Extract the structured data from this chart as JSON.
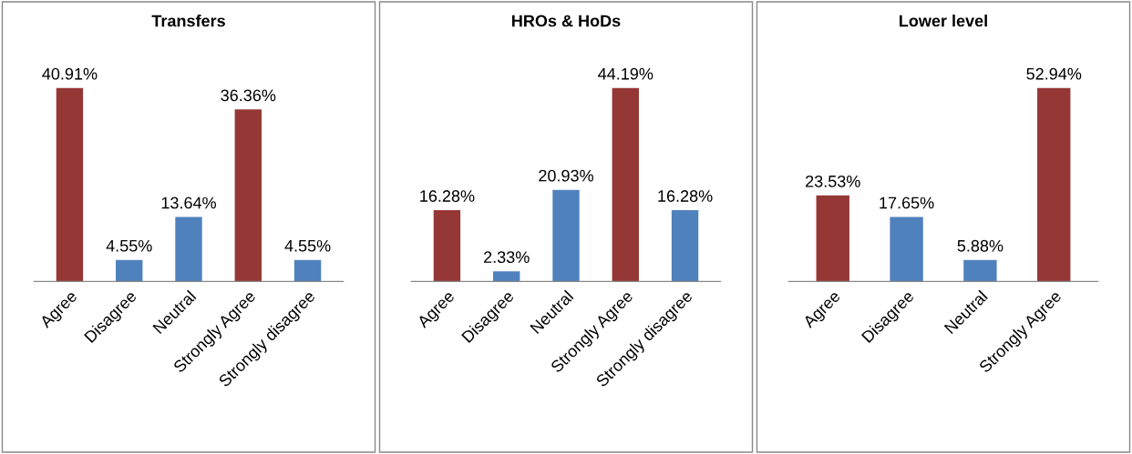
{
  "chart_data": [
    {
      "type": "bar",
      "title": "Transfers",
      "categories": [
        "Agree",
        "Disagree",
        "Neutral",
        "Strongly Agree",
        "Strongly disagree"
      ],
      "values": [
        40.91,
        4.55,
        13.64,
        36.36,
        4.55
      ],
      "colors": [
        "#953735",
        "#4f81bd",
        "#4f81bd",
        "#953735",
        "#4f81bd"
      ],
      "value_labels": [
        "40.91%",
        "4.55%",
        "13.64%",
        "36.36%",
        "4.55%"
      ],
      "grid": false,
      "legend": false
    },
    {
      "type": "bar",
      "title": "HROs & HoDs",
      "categories": [
        "Agree",
        "Disagree",
        "Neutral",
        "Strongly Agree",
        "Strongly disagree"
      ],
      "values": [
        16.28,
        2.33,
        20.93,
        44.19,
        16.28
      ],
      "colors": [
        "#953735",
        "#4f81bd",
        "#4f81bd",
        "#953735",
        "#4f81bd"
      ],
      "value_labels": [
        "16.28%",
        "2.33%",
        "20.93%",
        "44.19%",
        "16.28%"
      ],
      "grid": false,
      "legend": false
    },
    {
      "type": "bar",
      "title": "Lower level",
      "categories": [
        "Agree",
        "Disagree",
        "Neutral",
        "Strongly Agree"
      ],
      "values": [
        23.53,
        17.65,
        5.88,
        52.94
      ],
      "colors": [
        "#953735",
        "#4f81bd",
        "#4f81bd",
        "#953735"
      ],
      "value_labels": [
        "23.53%",
        "17.65%",
        "5.88%",
        "52.94%"
      ],
      "grid": false,
      "legend": false
    }
  ]
}
